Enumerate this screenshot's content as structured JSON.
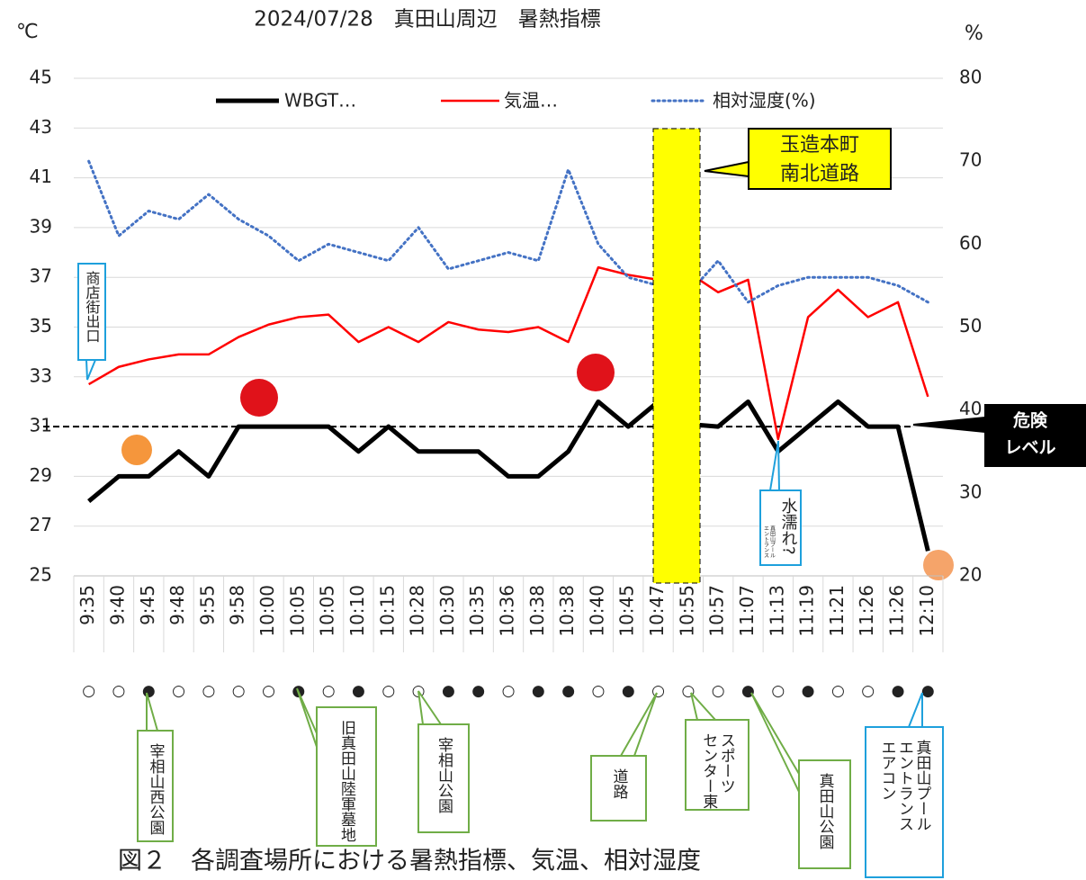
{
  "chart_data": {
    "type": "line",
    "title": "2024/07/28　真田山周辺　暑熱指標",
    "y_label": "℃",
    "y2_label": "%",
    "categories": [
      "9:35",
      "9:40",
      "9:45",
      "9:48",
      "9:55",
      "9:58",
      "10:00",
      "10:05",
      "10:05",
      "10:10",
      "10:15",
      "10:28",
      "10:30",
      "10:35",
      "10:36",
      "10:38",
      "10:38",
      "10:40",
      "10:45",
      "10:47",
      "10:55",
      "10:57",
      "11:07",
      "11:13",
      "11:19",
      "11:21",
      "11:26",
      "11:26",
      "12:10"
    ],
    "series": [
      {
        "name": "WBGT…",
        "color": "#000000",
        "values": [
          28,
          29,
          29,
          30,
          29,
          31,
          31,
          31,
          31,
          30,
          31,
          30,
          30,
          30,
          29,
          29,
          30,
          32,
          31,
          32,
          31.1,
          31,
          32,
          30,
          31,
          32,
          31,
          31,
          26
        ]
      },
      {
        "name": "気温…",
        "color": "#ff0000",
        "values": [
          32.7,
          33.4,
          33.7,
          33.9,
          33.9,
          34.6,
          35.1,
          35.4,
          35.5,
          34.4,
          35.0,
          34.4,
          35.2,
          34.9,
          34.8,
          35.0,
          34.4,
          37.4,
          37.1,
          36.9,
          37.2,
          36.4,
          36.9,
          30.5,
          35.4,
          36.5,
          35.4,
          36.0,
          32.2
        ]
      },
      {
        "name": "相対湿度(%)",
        "color": "#4472c4",
        "axis": "y2",
        "values": [
          70,
          61,
          64,
          63,
          66,
          63,
          61,
          58,
          60,
          59,
          58,
          62,
          57,
          58,
          59,
          58,
          69,
          60,
          56,
          55,
          54,
          58,
          53,
          55,
          56,
          56,
          56,
          55,
          53
        ]
      }
    ],
    "ylim": [
      25,
      45
    ],
    "yticks": [
      25,
      27,
      29,
      31,
      33,
      35,
      37,
      39,
      41,
      43,
      45
    ],
    "y2lim": [
      20,
      80
    ],
    "y2ticks": [
      20,
      30,
      40,
      50,
      60,
      70,
      80
    ],
    "grid": true,
    "legend": "top",
    "markers": [
      "○",
      "○",
      "●",
      "○",
      "○",
      "○",
      "○",
      "●",
      "○",
      "●",
      "○",
      "○",
      "●",
      "●",
      "○",
      "●",
      "●",
      "○",
      "●",
      "○",
      "○",
      "○",
      "●",
      "○",
      "●",
      "○",
      "○",
      "●",
      "●"
    ],
    "danger_level": 31,
    "danger_label": [
      "危険",
      "レベル"
    ],
    "highlight_label": [
      "玉造本町",
      "南北道路"
    ],
    "notes": [
      [
        "商店街出口"
      ],
      [
        "水濡れ?"
      ],
      [
        "真田山プール",
        "エントランス"
      ]
    ],
    "site_labels": [
      [
        "宰相山西公園"
      ],
      [
        "旧真田山陸軍墓地"
      ],
      [
        "宰相山公園"
      ],
      [
        "道路"
      ],
      [
        "スポーツ",
        "センター東"
      ],
      [
        "真田山公園"
      ],
      [
        "真田山プール",
        "エントランス",
        "エアコン"
      ]
    ],
    "caption": "図２　各調査場所における暑熱指標、気温、相対湿度"
  }
}
